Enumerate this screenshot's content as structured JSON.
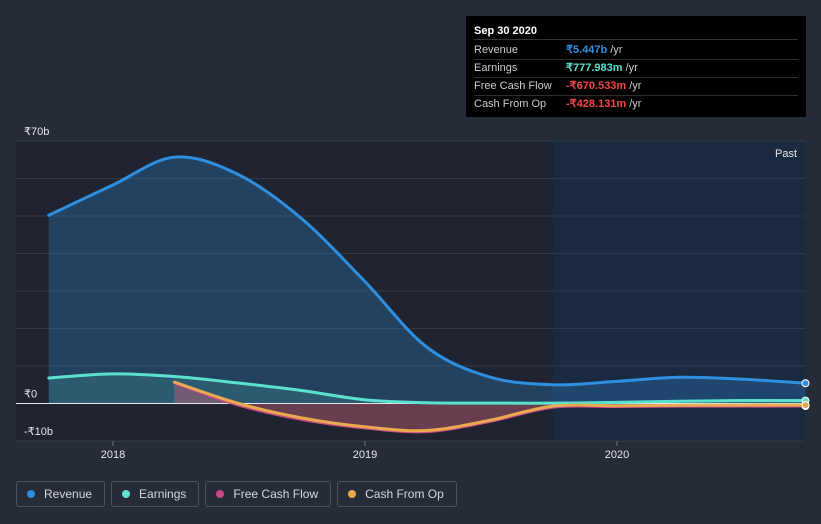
{
  "chart_data": {
    "type": "area",
    "x_ticks": [
      "2018",
      "2019",
      "2020"
    ],
    "y_ticks": [
      {
        "value": 70,
        "label": "₹70b"
      },
      {
        "value": 0,
        "label": "₹0"
      },
      {
        "value": -10,
        "label": "-₹10b"
      }
    ],
    "ylim": [
      -10,
      70
    ],
    "xlim": [
      "2017-10",
      "2020-12"
    ],
    "past_label": "Past",
    "past_from": "2019-09-30",
    "series": [
      {
        "name": "Revenue",
        "color": "#2e8fe0",
        "x": [
          "2017-09-30",
          "2017-12-31",
          "2018-03-31",
          "2018-06-30",
          "2018-09-30",
          "2018-12-31",
          "2019-03-31",
          "2019-06-30",
          "2019-09-30",
          "2019-12-31",
          "2020-03-31",
          "2020-06-30",
          "2020-09-30"
        ],
        "values": [
          50.2,
          58.2,
          65.7,
          61.2,
          49.5,
          32.7,
          15.1,
          7.1,
          5.0,
          5.9,
          7.0,
          6.5,
          5.4
        ]
      },
      {
        "name": "Earnings",
        "color": "#5ce1d0",
        "x": [
          "2017-09-30",
          "2017-12-31",
          "2018-03-31",
          "2018-06-30",
          "2018-09-30",
          "2018-12-31",
          "2019-03-31",
          "2019-06-30",
          "2019-09-30",
          "2019-12-31",
          "2020-03-31",
          "2020-06-30",
          "2020-09-30"
        ],
        "values": [
          6.8,
          7.9,
          7.2,
          5.5,
          3.5,
          1.0,
          0.2,
          0.1,
          0.1,
          0.3,
          0.6,
          0.8,
          0.78
        ]
      },
      {
        "name": "Free Cash Flow",
        "color": "#c94a86",
        "x": [
          "2018-03-31",
          "2018-06-30",
          "2018-09-30",
          "2018-12-31",
          "2019-03-31",
          "2019-06-30",
          "2019-09-30",
          "2019-12-31",
          "2020-03-31",
          "2020-06-30",
          "2020-09-30"
        ],
        "values": [
          5.5,
          -0.3,
          -4.2,
          -6.5,
          -7.5,
          -4.8,
          -1.0,
          -0.8,
          -0.7,
          -0.7,
          -0.67
        ]
      },
      {
        "name": "Cash From Op",
        "color": "#e8a94f",
        "x": [
          "2018-03-31",
          "2018-06-30",
          "2018-09-30",
          "2018-12-31",
          "2019-03-31",
          "2019-06-30",
          "2019-09-30",
          "2019-12-31",
          "2020-03-31",
          "2020-06-30",
          "2020-09-30"
        ],
        "values": [
          5.7,
          0.1,
          -3.8,
          -6.2,
          -7.2,
          -4.5,
          -0.7,
          -0.6,
          -0.5,
          -0.45,
          -0.43
        ]
      }
    ]
  },
  "tooltip": {
    "date": "Sep 30 2020",
    "rows": [
      {
        "label": "Revenue",
        "value": "₹5.447b",
        "unit": "/yr",
        "color": "#2e8fe0"
      },
      {
        "label": "Earnings",
        "value": "₹777.983m",
        "unit": "/yr",
        "color": "#5ce1d0"
      },
      {
        "label": "Free Cash Flow",
        "value": "-₹670.533m",
        "unit": "/yr",
        "color": "#f5464a"
      },
      {
        "label": "Cash From Op",
        "value": "-₹428.131m",
        "unit": "/yr",
        "color": "#f5464a"
      }
    ]
  },
  "legend": [
    {
      "label": "Revenue",
      "color": "#2e8fe0"
    },
    {
      "label": "Earnings",
      "color": "#5ce1d0"
    },
    {
      "label": "Free Cash Flow",
      "color": "#c94a86"
    },
    {
      "label": "Cash From Op",
      "color": "#e8a94f"
    }
  ]
}
